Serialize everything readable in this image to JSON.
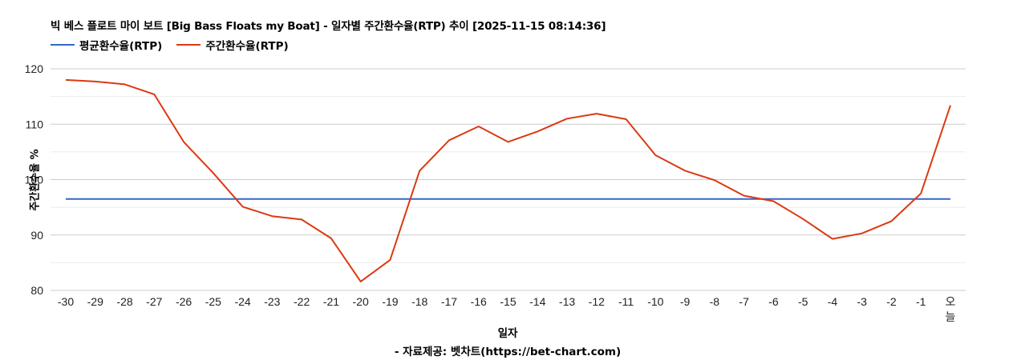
{
  "header": {
    "title": "빅 베스 플로트 마이 보트 [Big Bass Floats my Boat] - 일자별 주간환수율(RTP) 추이 [2025-11-15 08:14:36]"
  },
  "legend": {
    "items": [
      {
        "label": "평균환수율(RTP)",
        "color": "#3366cc"
      },
      {
        "label": "주간환수율(RTP)",
        "color": "#dc3912"
      }
    ]
  },
  "axes": {
    "ylabel": "주간환수율 %",
    "xlabel": "일자"
  },
  "footer": {
    "source": "- 자료제공: 벳차트(https://bet-chart.com)"
  },
  "chart_data": {
    "type": "line",
    "title": "빅 베스 플로트 마이 보트 [Big Bass Floats my Boat] - 일자별 주간환수율(RTP) 추이 [2025-11-15 08:14:36]",
    "xlabel": "일자",
    "ylabel": "주간환수율 %",
    "ylim": [
      80,
      120
    ],
    "yticks": [
      80,
      90,
      100,
      110,
      120
    ],
    "grid": true,
    "legend_position": "top",
    "categories": [
      "-30",
      "-29",
      "-28",
      "-27",
      "-26",
      "-25",
      "-24",
      "-23",
      "-22",
      "-21",
      "-20",
      "-19",
      "-18",
      "-17",
      "-16",
      "-15",
      "-14",
      "-13",
      "-12",
      "-11",
      "-10",
      "-9",
      "-8",
      "-7",
      "-6",
      "-5",
      "-4",
      "-3",
      "-2",
      "-1",
      "오늘"
    ],
    "series": [
      {
        "name": "평균환수율(RTP)",
        "color": "#3366cc",
        "values": [
          96.5,
          96.5,
          96.5,
          96.5,
          96.5,
          96.5,
          96.5,
          96.5,
          96.5,
          96.5,
          96.5,
          96.5,
          96.5,
          96.5,
          96.5,
          96.5,
          96.5,
          96.5,
          96.5,
          96.5,
          96.5,
          96.5,
          96.5,
          96.5,
          96.5,
          96.5,
          96.5,
          96.5,
          96.5,
          96.5,
          96.5
        ]
      },
      {
        "name": "주간환수율(RTP)",
        "color": "#dc3912",
        "values": [
          118.0,
          117.7,
          117.2,
          115.4,
          106.8,
          101.2,
          95.1,
          93.4,
          92.8,
          89.4,
          81.6,
          85.5,
          101.6,
          107.1,
          109.6,
          106.8,
          108.7,
          111.0,
          111.9,
          110.9,
          104.4,
          101.6,
          99.9,
          97.1,
          96.1,
          92.9,
          89.3,
          90.3,
          92.5,
          97.5,
          113.4
        ]
      }
    ]
  }
}
